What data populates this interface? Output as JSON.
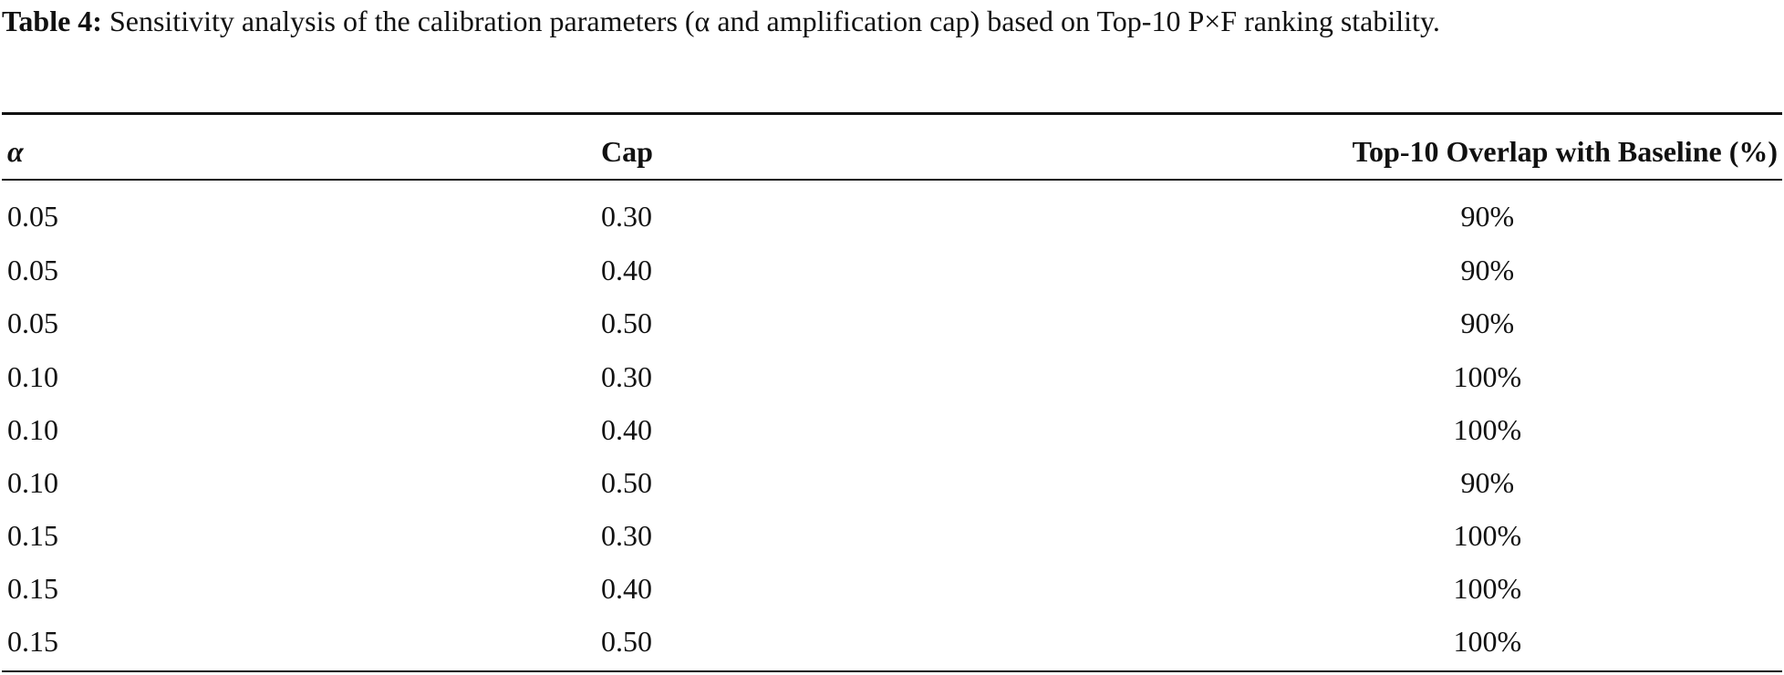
{
  "caption": {
    "label": "Table 4:",
    "text": "Sensitivity analysis of the calibration parameters (α and amplification cap) based on Top-10 P×F ranking stability."
  },
  "table": {
    "header": [
      "α",
      "Cap",
      "Top-10 Overlap with Baseline (%)"
    ],
    "rows": [
      [
        "0.05",
        "0.30",
        "90%"
      ],
      [
        "0.05",
        "0.40",
        "90%"
      ],
      [
        "0.05",
        "0.50",
        "90%"
      ],
      [
        "0.10",
        "0.30",
        "100%"
      ],
      [
        "0.10",
        "0.40",
        "100%"
      ],
      [
        "0.10",
        "0.50",
        "90%"
      ],
      [
        "0.15",
        "0.30",
        "100%"
      ],
      [
        "0.15",
        "0.40",
        "100%"
      ],
      [
        "0.15",
        "0.50",
        "100%"
      ]
    ]
  }
}
